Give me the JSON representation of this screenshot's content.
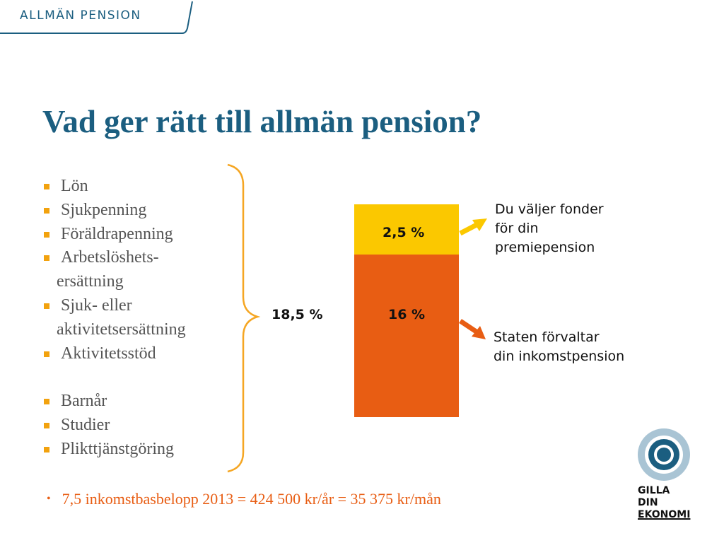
{
  "header": {
    "section_label": "ALLMÄN PENSION"
  },
  "title": "Vad ger rätt till allmän pension?",
  "bullets": [
    {
      "lines": [
        "Lön"
      ]
    },
    {
      "lines": [
        "Sjukpenning"
      ]
    },
    {
      "lines": [
        "Föräldrapenning"
      ]
    },
    {
      "lines": [
        "Arbetslöshets-",
        "ersättning"
      ]
    },
    {
      "lines": [
        "Sjuk- eller",
        "aktivitetsersättning"
      ]
    },
    {
      "lines": [
        "Aktivitetsstöd"
      ]
    },
    {
      "lines": [
        "Barnår"
      ]
    },
    {
      "lines": [
        "Studier"
      ]
    },
    {
      "lines": [
        "Plikttjänstgöring"
      ]
    }
  ],
  "chart_data": {
    "type": "bar",
    "stacked": true,
    "total_label": "18,5 %",
    "total": 18.5,
    "segments": [
      {
        "label": "16 %",
        "value": 16,
        "color": "#e85d13"
      },
      {
        "label": "2,5 %",
        "value": 2.5,
        "color": "#fbc800"
      }
    ]
  },
  "notes": {
    "premium": [
      "Du väljer fonder",
      "för din",
      "premiepension"
    ],
    "income": [
      "Staten förvaltar",
      "din inkomstpension"
    ]
  },
  "footer_note": "7,5 inkomstbasbelopp 2013 = 424 500 kr/år = 35 375  kr/mån",
  "logo": {
    "line1": "GILLA DIN",
    "line2": "EKONOMI"
  },
  "colors": {
    "title": "#1b5e80",
    "accent_orange": "#e85d13",
    "accent_yellow": "#fbc800",
    "bullet": "#f2a20e",
    "logo_blue": "#1b5e80"
  }
}
